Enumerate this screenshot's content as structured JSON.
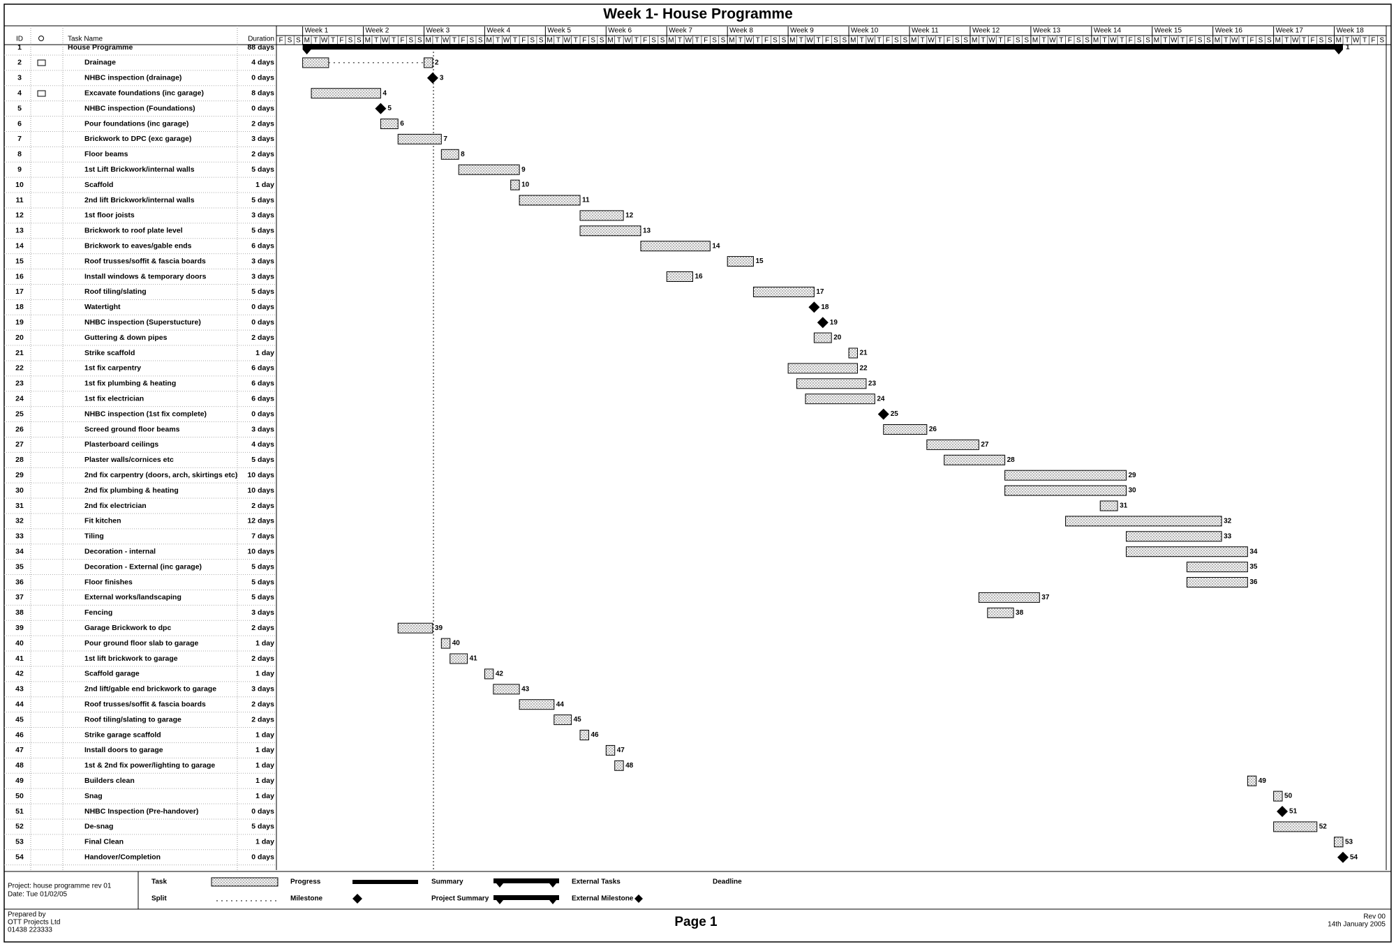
{
  "header": {
    "title": "Week 1- House Programme"
  },
  "columns": {
    "id": "ID",
    "name": "Task Name",
    "duration": "Duration"
  },
  "timescale": {
    "weeks": [
      "Week 1",
      "Week 2",
      "Week 3",
      "Week 4",
      "Week 5",
      "Week 6",
      "Week 7",
      "Week 8",
      "Week 9",
      "Week 10",
      "Week 11",
      "Week 12",
      "Week 13",
      "Week 14",
      "Week 15",
      "Week 16",
      "Week 17",
      "Week 18"
    ],
    "days": [
      "F",
      "S",
      "S",
      "M",
      "T",
      "W",
      "T",
      "F",
      "S",
      "S",
      "M",
      "T",
      "W",
      "T",
      "F",
      "S",
      "S",
      "M",
      "T",
      "W",
      "T",
      "F",
      "S",
      "S",
      "M",
      "T",
      "W",
      "T",
      "F",
      "S",
      "S",
      "M",
      "T",
      "W",
      "T",
      "F",
      "S",
      "S",
      "M",
      "T",
      "W",
      "T",
      "F",
      "S",
      "S",
      "M",
      "T",
      "W",
      "T",
      "F",
      "S",
      "S",
      "M",
      "T",
      "W",
      "T",
      "F",
      "S",
      "S",
      "M",
      "T",
      "W",
      "T",
      "F",
      "S",
      "S",
      "M",
      "T",
      "W",
      "T",
      "F",
      "S",
      "S",
      "M",
      "T",
      "W",
      "T",
      "F",
      "S",
      "S",
      "M",
      "T",
      "W",
      "T",
      "F",
      "S",
      "S",
      "M",
      "T",
      "W",
      "T",
      "F",
      "S",
      "S",
      "M",
      "T",
      "W",
      "T",
      "F",
      "S",
      "S",
      "M",
      "T",
      "W",
      "T",
      "F",
      "S",
      "S",
      "M",
      "T",
      "W",
      "T",
      "F",
      "S",
      "S",
      "M",
      "T",
      "W",
      "T",
      "F",
      "S",
      "S",
      "M",
      "T",
      "W",
      "T",
      "F",
      "S"
    ]
  },
  "tasks": [
    {
      "id": 1,
      "name": "House Programme",
      "duration": "88 days",
      "summary": true,
      "segments": [
        [
          3,
          123
        ]
      ]
    },
    {
      "id": 2,
      "name": "Drainage",
      "duration": "4 days",
      "segments": [
        [
          3,
          6
        ],
        [
          17,
          18
        ]
      ]
    },
    {
      "id": 3,
      "name": "NHBC inspection (drainage)",
      "duration": "0 days",
      "at": 18
    },
    {
      "id": 4,
      "name": "Excavate foundations (inc garage)",
      "duration": "8 days",
      "segments": [
        [
          4,
          12
        ]
      ]
    },
    {
      "id": 5,
      "name": "NHBC inspection (Foundations)",
      "duration": "0 days",
      "at": 12
    },
    {
      "id": 6,
      "name": "Pour foundations (inc garage)",
      "duration": "2 days",
      "segments": [
        [
          12,
          14
        ]
      ]
    },
    {
      "id": 7,
      "name": "Brickwork to DPC (exc garage)",
      "duration": "3 days",
      "segments": [
        [
          14,
          19
        ]
      ]
    },
    {
      "id": 8,
      "name": "Floor beams",
      "duration": "2 days",
      "segments": [
        [
          19,
          21
        ]
      ]
    },
    {
      "id": 9,
      "name": "1st Lift Brickwork/internal walls",
      "duration": "5 days",
      "segments": [
        [
          21,
          28
        ]
      ]
    },
    {
      "id": 10,
      "name": "Scaffold",
      "duration": "1 day",
      "segments": [
        [
          27,
          28
        ]
      ]
    },
    {
      "id": 11,
      "name": "2nd lift Brickwork/internal walls",
      "duration": "5 days",
      "segments": [
        [
          28,
          35
        ]
      ]
    },
    {
      "id": 12,
      "name": "1st floor joists",
      "duration": "3 days",
      "segments": [
        [
          35,
          40
        ]
      ]
    },
    {
      "id": 13,
      "name": "Brickwork to roof plate level",
      "duration": "5 days",
      "segments": [
        [
          35,
          42
        ]
      ]
    },
    {
      "id": 14,
      "name": "Brickwork to eaves/gable ends",
      "duration": "6 days",
      "segments": [
        [
          42,
          50
        ]
      ]
    },
    {
      "id": 15,
      "name": "Roof trusses/soffit & fascia boards",
      "duration": "3 days",
      "segments": [
        [
          52,
          55
        ]
      ]
    },
    {
      "id": 16,
      "name": "Install windows & temporary doors",
      "duration": "3 days",
      "segments": [
        [
          45,
          48
        ]
      ]
    },
    {
      "id": 17,
      "name": "Roof tiling/slating",
      "duration": "5 days",
      "segments": [
        [
          55,
          62
        ]
      ]
    },
    {
      "id": 18,
      "name": "Watertight",
      "duration": "0 days",
      "at": 62
    },
    {
      "id": 19,
      "name": "NHBC inspection (Superstucture)",
      "duration": "0 days",
      "at": 63
    },
    {
      "id": 20,
      "name": "Guttering & down pipes",
      "duration": "2 days",
      "segments": [
        [
          62,
          64
        ]
      ]
    },
    {
      "id": 21,
      "name": "Strike scaffold",
      "duration": "1 day",
      "segments": [
        [
          66,
          67
        ]
      ]
    },
    {
      "id": 22,
      "name": "1st fix carpentry",
      "duration": "6 days",
      "segments": [
        [
          59,
          67
        ]
      ]
    },
    {
      "id": 23,
      "name": "1st fix plumbing & heating",
      "duration": "6 days",
      "segments": [
        [
          60,
          68
        ]
      ]
    },
    {
      "id": 24,
      "name": "1st fix electrician",
      "duration": "6 days",
      "segments": [
        [
          61,
          69
        ]
      ]
    },
    {
      "id": 25,
      "name": "NHBC inspection (1st fix complete)",
      "duration": "0 days",
      "at": 70
    },
    {
      "id": 26,
      "name": "Screed ground floor beams",
      "duration": "3 days",
      "segments": [
        [
          70,
          75
        ]
      ]
    },
    {
      "id": 27,
      "name": "Plasterboard ceilings",
      "duration": "4 days",
      "segments": [
        [
          75,
          81
        ]
      ]
    },
    {
      "id": 28,
      "name": "Plaster walls/cornices etc",
      "duration": "5 days",
      "segments": [
        [
          77,
          84
        ]
      ]
    },
    {
      "id": 29,
      "name": "2nd fix carpentry (doors, arch, skirtings etc)",
      "duration": "10 days",
      "segments": [
        [
          84,
          98
        ]
      ]
    },
    {
      "id": 30,
      "name": "2nd fix plumbing & heating",
      "duration": "10 days",
      "segments": [
        [
          84,
          98
        ]
      ]
    },
    {
      "id": 31,
      "name": "2nd fix electrician",
      "duration": "2 days",
      "segments": [
        [
          95,
          97
        ]
      ]
    },
    {
      "id": 32,
      "name": "Fit kitchen",
      "duration": "12 days",
      "segments": [
        [
          91,
          109
        ]
      ]
    },
    {
      "id": 33,
      "name": "Tiling",
      "duration": "7 days",
      "segments": [
        [
          98,
          109
        ]
      ]
    },
    {
      "id": 34,
      "name": "Decoration - internal",
      "duration": "10 days",
      "segments": [
        [
          98,
          112
        ]
      ]
    },
    {
      "id": 35,
      "name": "Decoration - External (inc garage)",
      "duration": "5 days",
      "segments": [
        [
          105,
          112
        ]
      ]
    },
    {
      "id": 36,
      "name": "Floor finishes",
      "duration": "5 days",
      "segments": [
        [
          105,
          112
        ]
      ]
    },
    {
      "id": 37,
      "name": "External works/landscaping",
      "duration": "5 days",
      "segments": [
        [
          81,
          88
        ]
      ]
    },
    {
      "id": 38,
      "name": "Fencing",
      "duration": "3 days",
      "segments": [
        [
          82,
          85
        ]
      ]
    },
    {
      "id": 39,
      "name": "Garage Brickwork to dpc",
      "duration": "2 days",
      "segments": [
        [
          14,
          18
        ]
      ]
    },
    {
      "id": 40,
      "name": "Pour ground floor slab to garage",
      "duration": "1 day",
      "segments": [
        [
          19,
          20
        ]
      ]
    },
    {
      "id": 41,
      "name": "1st lift brickwork to garage",
      "duration": "2 days",
      "segments": [
        [
          20,
          22
        ]
      ]
    },
    {
      "id": 42,
      "name": "Scaffold garage",
      "duration": "1 day",
      "segments": [
        [
          24,
          25
        ]
      ]
    },
    {
      "id": 43,
      "name": "2nd lift/gable end brickwork to garage",
      "duration": "3 days",
      "segments": [
        [
          25,
          28
        ]
      ]
    },
    {
      "id": 44,
      "name": "Roof trusses/soffit & fascia boards",
      "duration": "2 days",
      "segments": [
        [
          28,
          32
        ]
      ]
    },
    {
      "id": 45,
      "name": "Roof tiling/slating to garage",
      "duration": "2 days",
      "segments": [
        [
          32,
          34
        ]
      ]
    },
    {
      "id": 46,
      "name": "Strike garage scaffold",
      "duration": "1 day",
      "segments": [
        [
          35,
          36
        ]
      ]
    },
    {
      "id": 47,
      "name": "Install doors to garage",
      "duration": "1 day",
      "segments": [
        [
          38,
          39
        ]
      ]
    },
    {
      "id": 48,
      "name": "1st & 2nd fix power/lighting to garage",
      "duration": "1 day",
      "segments": [
        [
          39,
          40
        ]
      ]
    },
    {
      "id": 49,
      "name": "Builders clean",
      "duration": "1 day",
      "segments": [
        [
          112,
          113
        ]
      ]
    },
    {
      "id": 50,
      "name": "Snag",
      "duration": "1 day",
      "segments": [
        [
          115,
          116
        ]
      ]
    },
    {
      "id": 51,
      "name": "NHBC Inspection (Pre-handover)",
      "duration": "0 days",
      "at": 116
    },
    {
      "id": 52,
      "name": "De-snag",
      "duration": "5 days",
      "segments": [
        [
          115,
          120
        ]
      ]
    },
    {
      "id": 53,
      "name": "Final Clean",
      "duration": "1 day",
      "segments": [
        [
          122,
          123
        ]
      ]
    },
    {
      "id": 54,
      "name": "Handover/Completion",
      "duration": "0 days",
      "at": 123
    }
  ],
  "legend": {
    "project": "Project: house programme rev 01",
    "date": "Date: Tue 01/02/05",
    "task": "Task",
    "split": "Split",
    "progress": "Progress",
    "milestone": "Milestone",
    "summary": "Summary",
    "project_summary": "Project Summary",
    "external_tasks": "External Tasks",
    "external_milestone": "External Milestone",
    "deadline": "Deadline"
  },
  "footer": {
    "prepared_by": "Prepared by",
    "company": "OTT Projects Ltd",
    "phone": "01438 223333",
    "page": "Page 1",
    "rev": "Rev 00",
    "date": "14th January 2005"
  }
}
